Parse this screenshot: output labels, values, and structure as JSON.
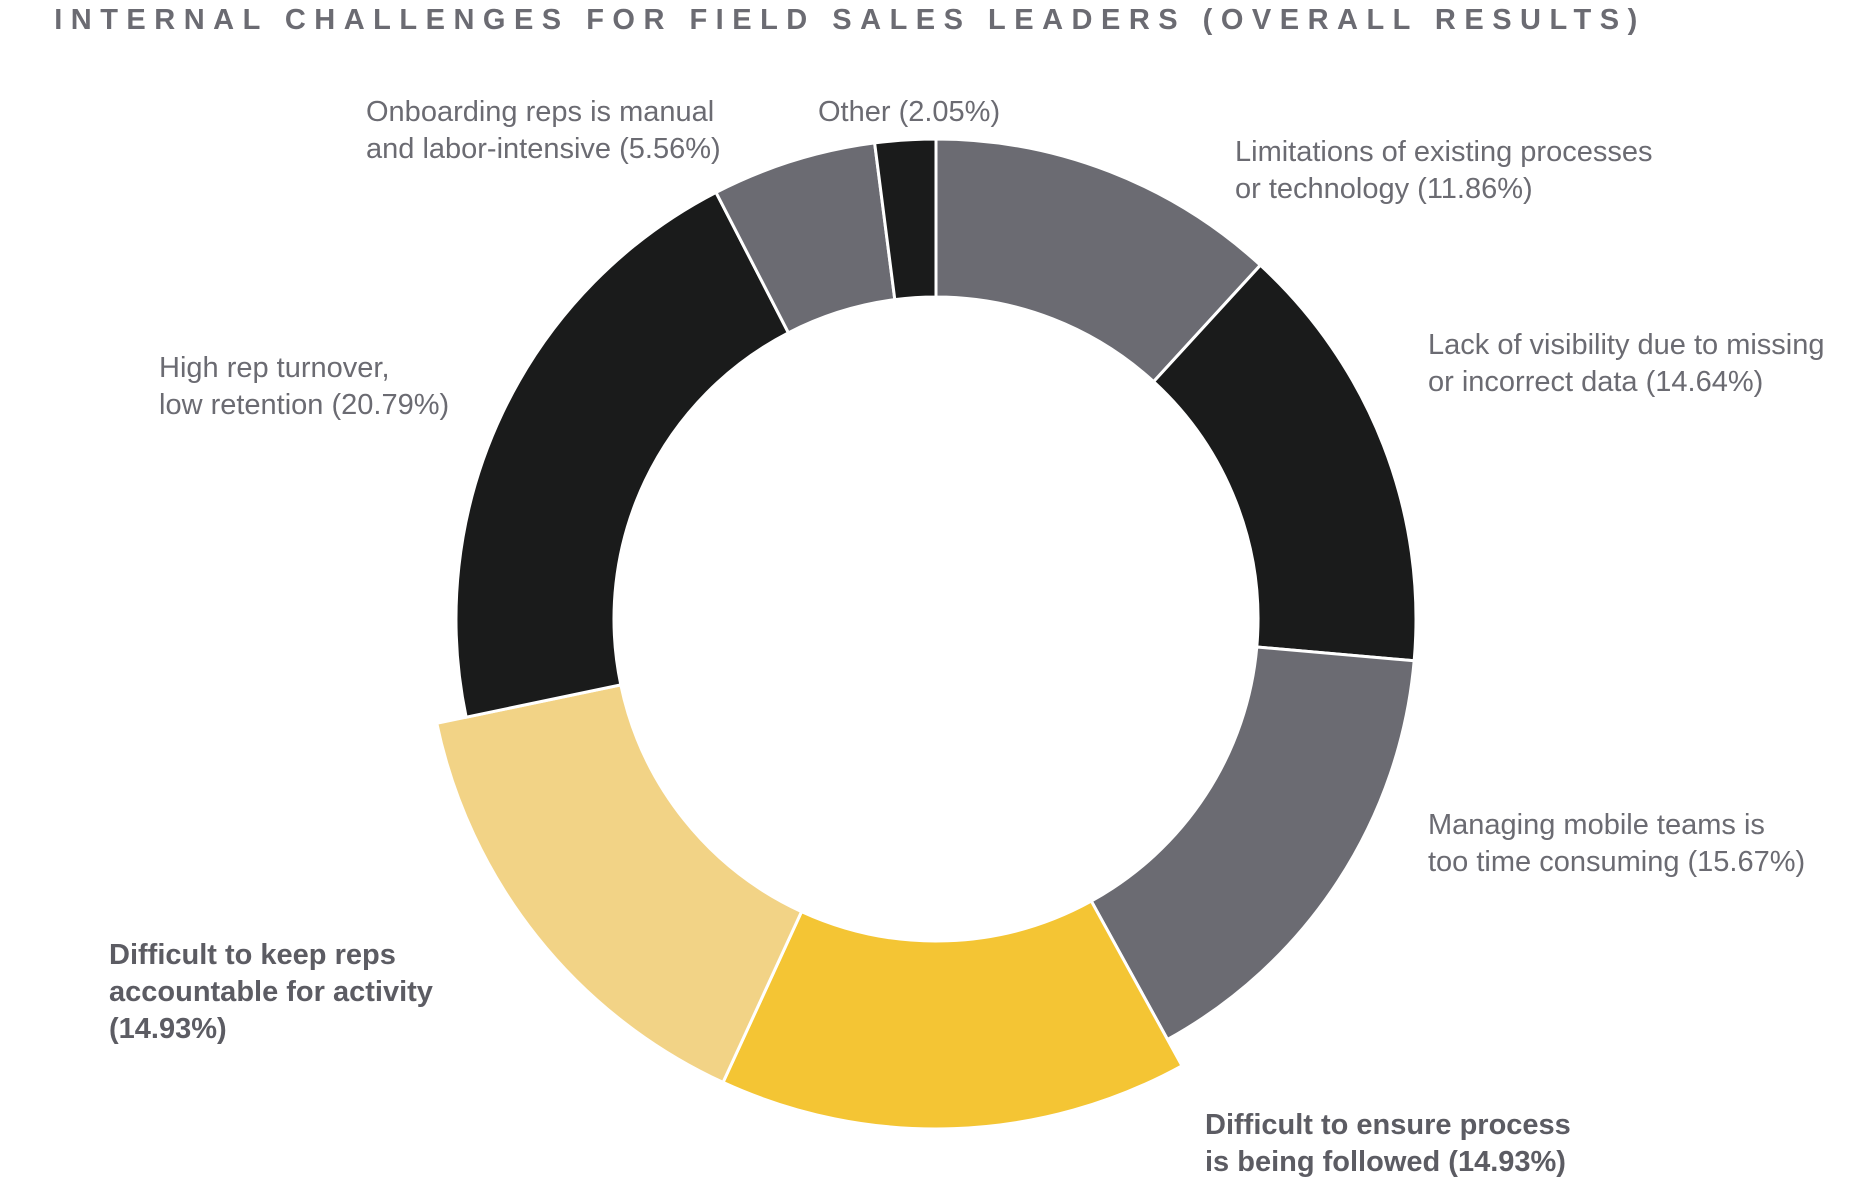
{
  "chart_data": {
    "type": "pie",
    "title": "INTERNAL CHALLENGES FOR FIELD SALES LEADERS (OVERALL RESULTS)",
    "donut": true,
    "slices": [
      {
        "label_lines": [
          "Limitations of existing processes",
          "or technology (11.86%)"
        ],
        "value": 11.86,
        "color": "#6b6b72",
        "highlight": false
      },
      {
        "label_lines": [
          "Lack of visibility due to missing",
          "or incorrect data (14.64%)"
        ],
        "value": 14.64,
        "color": "#1a1b1b",
        "highlight": false
      },
      {
        "label_lines": [
          "Managing mobile teams is",
          "too time consuming (15.67%)"
        ],
        "value": 15.67,
        "color": "#6b6b72",
        "highlight": false
      },
      {
        "label_lines": [
          "Difficult to ensure process",
          "is being followed (14.93%)"
        ],
        "value": 14.93,
        "color": "#f4c534",
        "highlight": true
      },
      {
        "label_lines": [
          "Difficult to keep reps",
          "accountable for activity",
          "(14.93%)"
        ],
        "value": 14.93,
        "color": "#f2d386",
        "highlight": true
      },
      {
        "label_lines": [
          "High rep turnover,",
          "low retention (20.79%)"
        ],
        "value": 20.79,
        "color": "#1a1b1b",
        "highlight": false
      },
      {
        "label_lines": [
          "Onboarding reps is manual",
          "and labor-intensive (5.56%)"
        ],
        "value": 5.56,
        "color": "#6b6b72",
        "highlight": false
      },
      {
        "label_lines": [
          "Other (2.05%)"
        ],
        "value": 2.05,
        "color": "#1a1b1b",
        "highlight": false
      }
    ]
  }
}
